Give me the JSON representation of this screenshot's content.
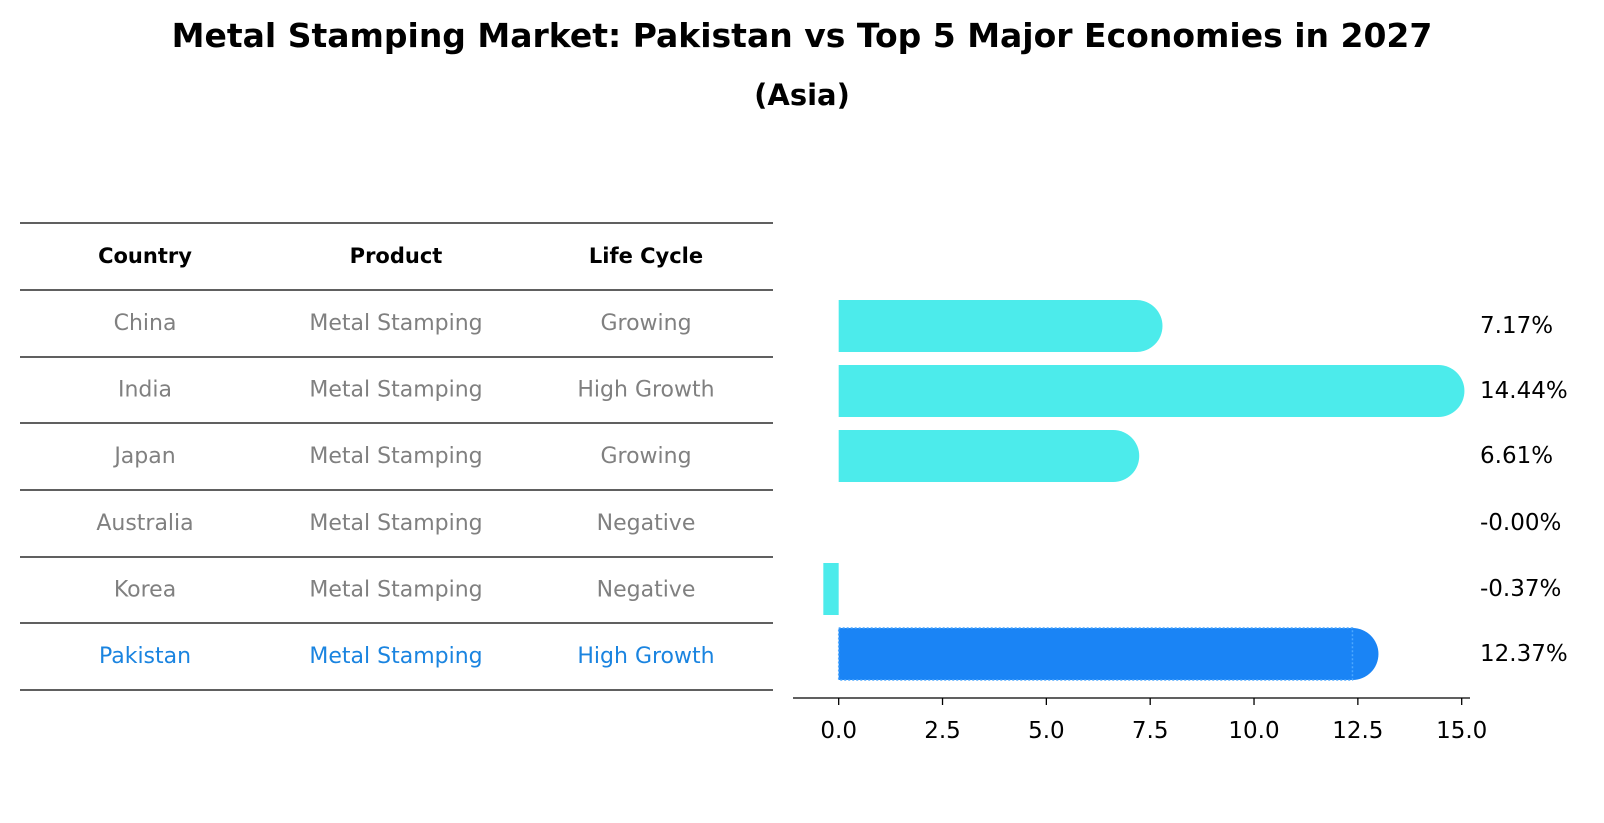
{
  "title": "Metal Stamping Market: Pakistan vs Top 5 Major Economies in 2027",
  "subtitle": "(Asia)",
  "table": {
    "headers": [
      "Country",
      "Product",
      "Life Cycle"
    ],
    "rows": [
      [
        "China",
        "Metal Stamping",
        "Growing"
      ],
      [
        "India",
        "Metal Stamping",
        "High Growth"
      ],
      [
        "Japan",
        "Metal Stamping",
        "Growing"
      ],
      [
        "Australia",
        "Metal Stamping",
        "Negative"
      ],
      [
        "Korea",
        "Metal Stamping",
        "Negative"
      ],
      [
        "Pakistan",
        "Metal Stamping",
        "High Growth"
      ]
    ],
    "row_color": "#808080",
    "highlight_row": 5,
    "highlight_color": "#1a84e0"
  },
  "chart_data": {
    "type": "bar",
    "orientation": "horizontal",
    "categories": [
      "China",
      "India",
      "Japan",
      "Australia",
      "Korea",
      "Pakistan"
    ],
    "values": [
      7.17,
      14.44,
      6.61,
      -0.0,
      -0.37,
      12.37
    ],
    "value_labels": [
      "7.17%",
      "14.44%",
      "6.61%",
      "-0.00%",
      "-0.37%",
      "12.37%"
    ],
    "xlim": [
      -1.1,
      15.2
    ],
    "xticks": [
      0.0,
      2.5,
      5.0,
      7.5,
      10.0,
      12.5,
      15.0
    ],
    "xtick_labels": [
      "0.0",
      "2.5",
      "5.0",
      "7.5",
      "10.0",
      "12.5",
      "15.0"
    ],
    "grid": false,
    "bar_color": "#4cebeb",
    "highlight_color": "#1a84f5",
    "highlight_index": 5
  }
}
